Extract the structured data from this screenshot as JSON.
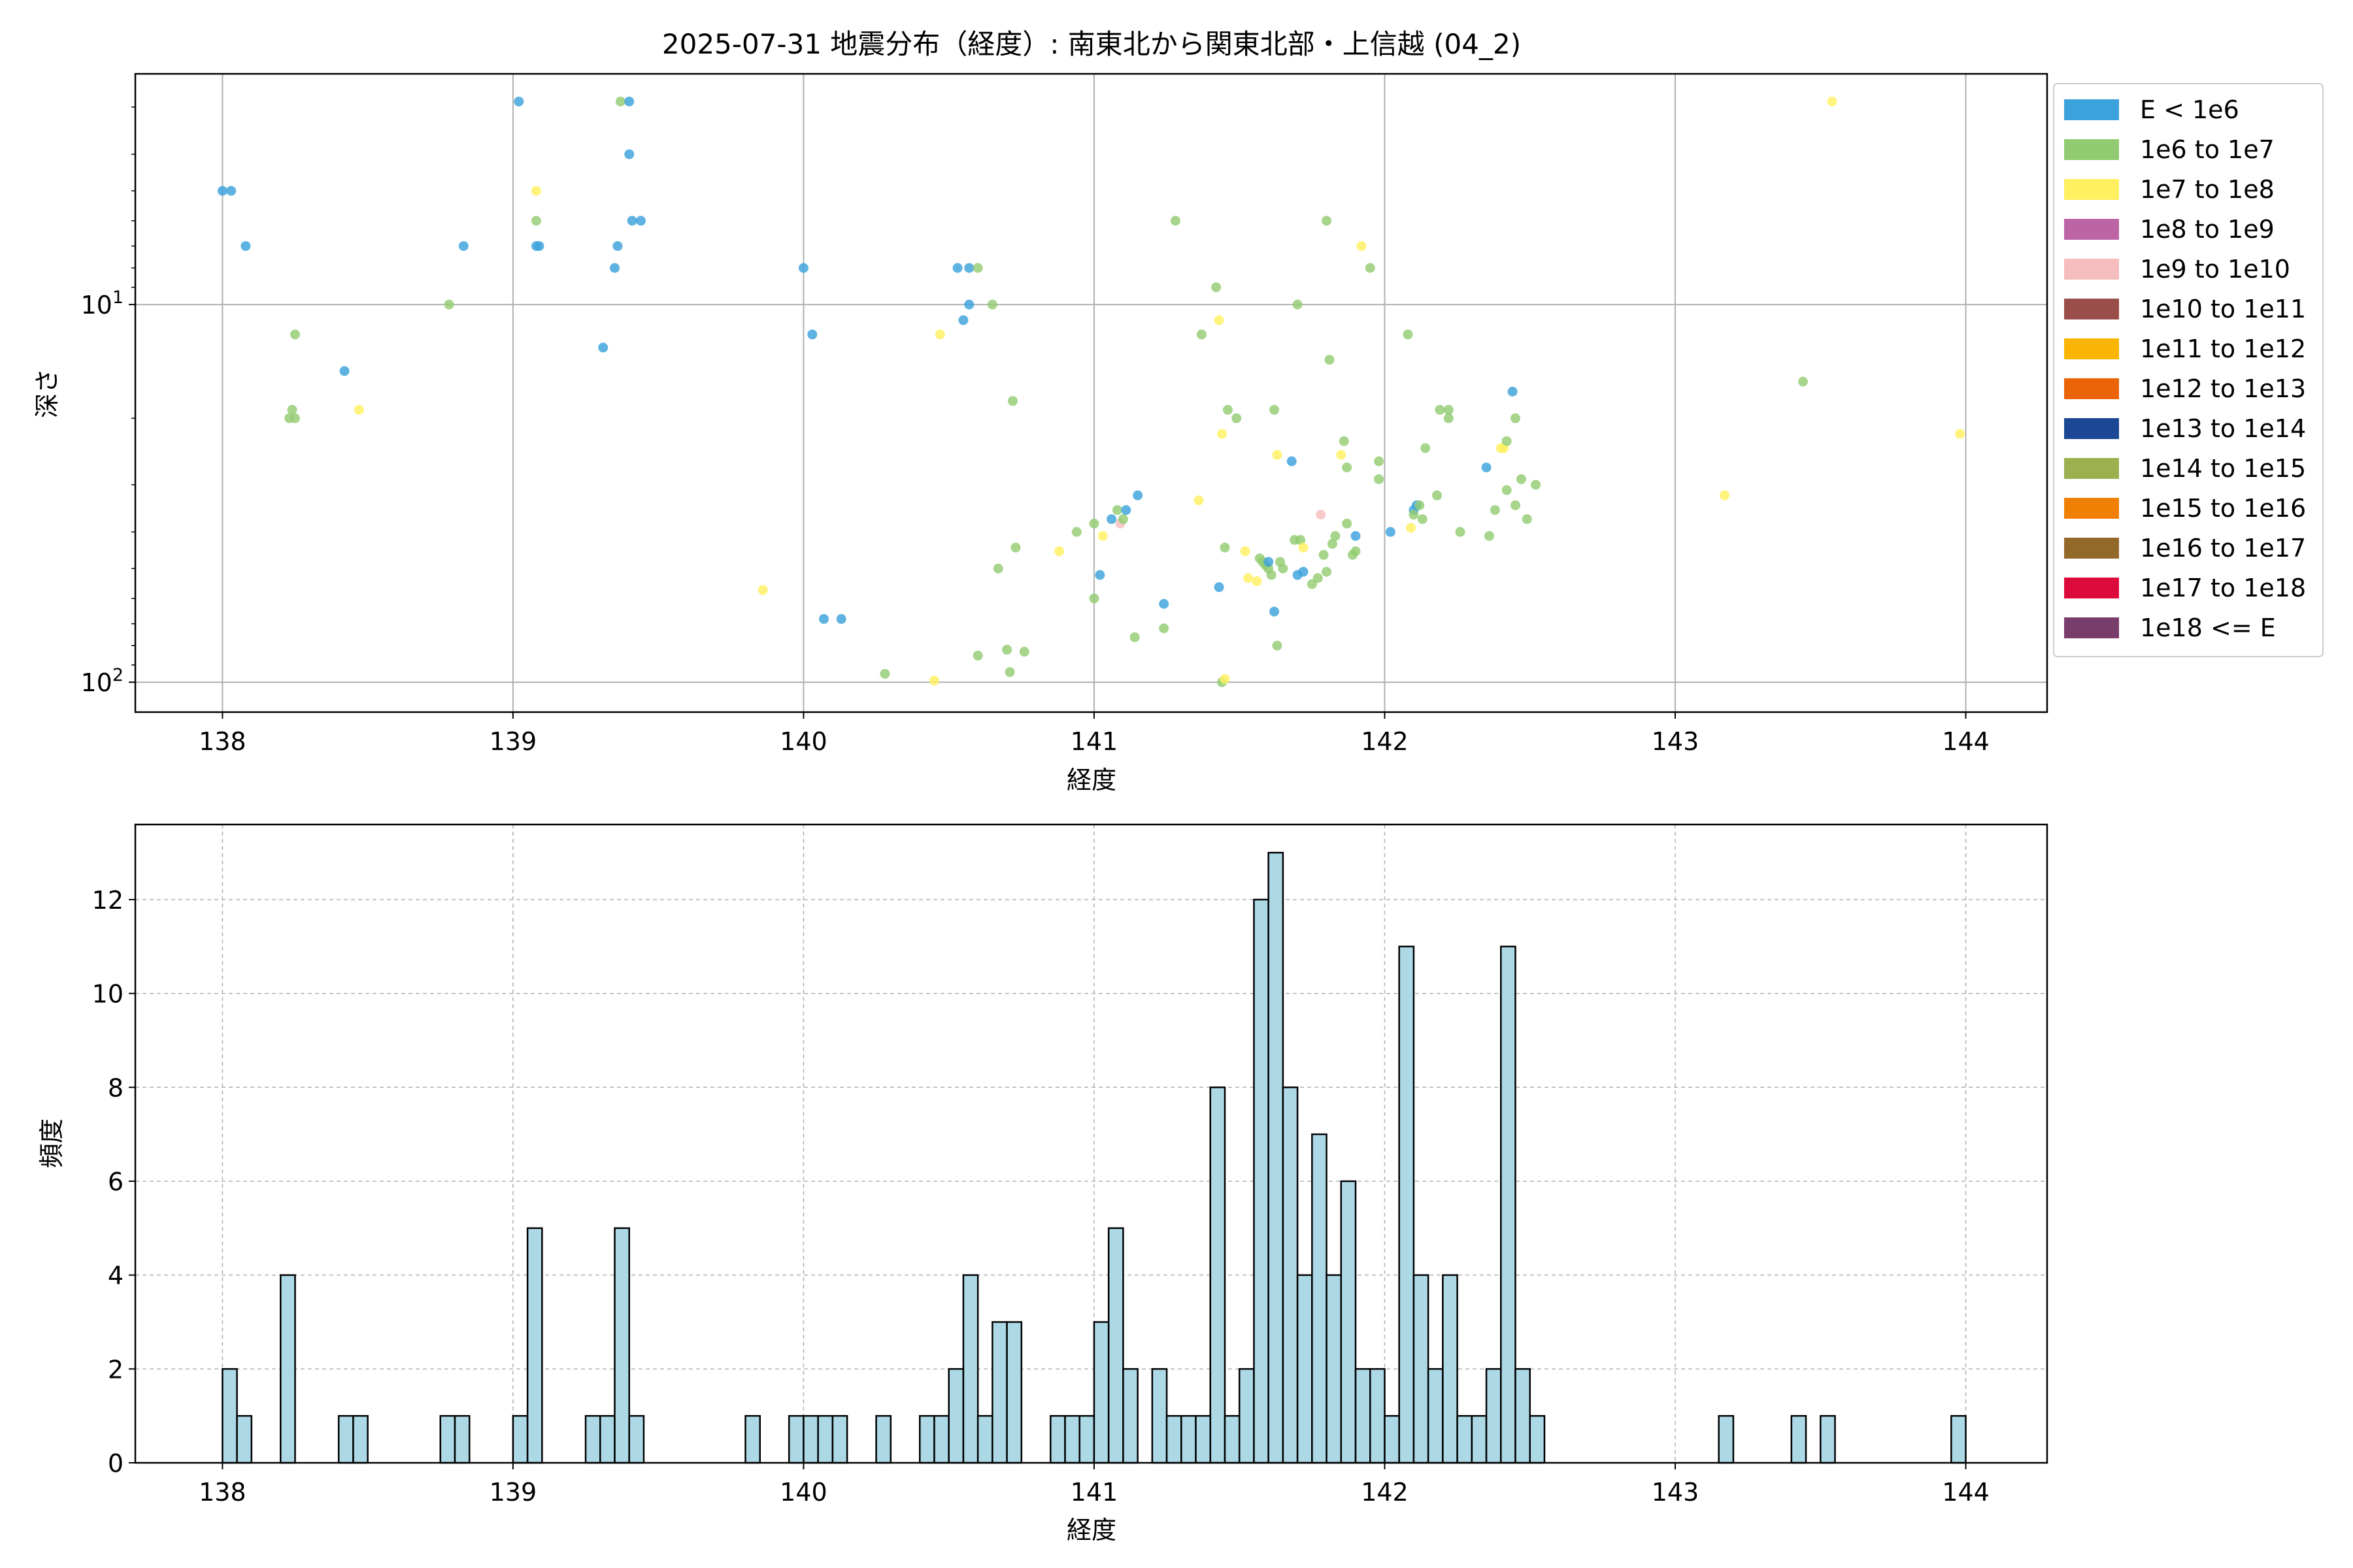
{
  "figure": {
    "title": "2025-07-31 地震分布（経度）: 南東北から関東北部・上信越 (04_2)"
  },
  "chart_data": [
    {
      "type": "scatter",
      "xlabel": "経度",
      "ylabel": "深さ",
      "xlim": [
        137.7,
        144.28
      ],
      "yscale": "log",
      "y_inverted": true,
      "ylim": [
        120,
        2.45
      ],
      "xticks": [
        "138",
        "139",
        "140",
        "141",
        "142",
        "143",
        "144"
      ],
      "yticks": [
        {
          "value": 10,
          "base": "10",
          "exp": "1"
        },
        {
          "value": 100,
          "base": "10",
          "exp": "2"
        }
      ],
      "grid": true,
      "legend_position": "outside-right",
      "legend": [
        {
          "label": "E < 1e6",
          "color": "#3ca2dc"
        },
        {
          "label": "1e6 to 1e7",
          "color": "#92cc72"
        },
        {
          "label": "1e7 to 1e8",
          "color": "#fff060"
        },
        {
          "label": "1e8 to 1e9",
          "color": "#bc64a4"
        },
        {
          "label": "1e9 to 1e10",
          "color": "#f5bdbd"
        },
        {
          "label": "1e10 to 1e11",
          "color": "#9a4e4a"
        },
        {
          "label": "1e11 to 1e12",
          "color": "#f9b404"
        },
        {
          "label": "1e12 to 1e13",
          "color": "#ea6306"
        },
        {
          "label": "1e13 to 1e14",
          "color": "#1c4794"
        },
        {
          "label": "1e14 to 1e15",
          "color": "#9cb04f"
        },
        {
          "label": "1e15 to 1e16",
          "color": "#f07f06"
        },
        {
          "label": "1e16 to 1e17",
          "color": "#93692a"
        },
        {
          "label": "1e17 to 1e18",
          "color": "#dc0b3c"
        },
        {
          "label": "1e18 <= E",
          "color": "#793d6b"
        }
      ],
      "points": [
        {
          "x": 138.0,
          "y": 5.0,
          "c": 0
        },
        {
          "x": 138.03,
          "y": 5.0,
          "c": 0
        },
        {
          "x": 138.08,
          "y": 7.0,
          "c": 0
        },
        {
          "x": 138.25,
          "y": 12.0,
          "c": 1
        },
        {
          "x": 138.24,
          "y": 19.0,
          "c": 1
        },
        {
          "x": 138.23,
          "y": 20.0,
          "c": 1
        },
        {
          "x": 138.25,
          "y": 20.0,
          "c": 1
        },
        {
          "x": 138.42,
          "y": 15.0,
          "c": 0
        },
        {
          "x": 138.47,
          "y": 19.0,
          "c": 2
        },
        {
          "x": 138.78,
          "y": 10.0,
          "c": 1
        },
        {
          "x": 138.83,
          "y": 7.0,
          "c": 0
        },
        {
          "x": 139.02,
          "y": 2.9,
          "c": 0
        },
        {
          "x": 139.08,
          "y": 5.0,
          "c": 2
        },
        {
          "x": 139.08,
          "y": 6.0,
          "c": 1
        },
        {
          "x": 139.08,
          "y": 7.0,
          "c": 0
        },
        {
          "x": 139.09,
          "y": 7.0,
          "c": 0
        },
        {
          "x": 139.31,
          "y": 13.0,
          "c": 0
        },
        {
          "x": 139.35,
          "y": 8.0,
          "c": 0
        },
        {
          "x": 139.36,
          "y": 7.0,
          "c": 0
        },
        {
          "x": 139.37,
          "y": 2.9,
          "c": 1
        },
        {
          "x": 139.4,
          "y": 2.9,
          "c": 0
        },
        {
          "x": 139.4,
          "y": 4.0,
          "c": 0
        },
        {
          "x": 139.41,
          "y": 6.0,
          "c": 0
        },
        {
          "x": 139.44,
          "y": 6.0,
          "c": 0
        },
        {
          "x": 139.86,
          "y": 57.0,
          "c": 2
        },
        {
          "x": 140.0,
          "y": 8.0,
          "c": 0
        },
        {
          "x": 140.03,
          "y": 12.0,
          "c": 0
        },
        {
          "x": 140.07,
          "y": 68.0,
          "c": 0
        },
        {
          "x": 140.13,
          "y": 68.0,
          "c": 0
        },
        {
          "x": 140.28,
          "y": 95.0,
          "c": 1
        },
        {
          "x": 140.45,
          "y": 99.0,
          "c": 2
        },
        {
          "x": 140.47,
          "y": 12.0,
          "c": 2
        },
        {
          "x": 140.53,
          "y": 8.0,
          "c": 0
        },
        {
          "x": 140.55,
          "y": 11.0,
          "c": 0
        },
        {
          "x": 140.57,
          "y": 8.0,
          "c": 0
        },
        {
          "x": 140.57,
          "y": 10.0,
          "c": 0
        },
        {
          "x": 140.6,
          "y": 8.0,
          "c": 1
        },
        {
          "x": 140.6,
          "y": 85.0,
          "c": 1
        },
        {
          "x": 140.65,
          "y": 10.0,
          "c": 1
        },
        {
          "x": 140.67,
          "y": 50.0,
          "c": 1
        },
        {
          "x": 140.7,
          "y": 82.0,
          "c": 1
        },
        {
          "x": 140.71,
          "y": 94.0,
          "c": 1
        },
        {
          "x": 140.72,
          "y": 18.0,
          "c": 1
        },
        {
          "x": 140.73,
          "y": 44.0,
          "c": 1
        },
        {
          "x": 140.76,
          "y": 83.0,
          "c": 1
        },
        {
          "x": 140.88,
          "y": 45.0,
          "c": 2
        },
        {
          "x": 140.94,
          "y": 40.0,
          "c": 1
        },
        {
          "x": 141.0,
          "y": 38.0,
          "c": 1
        },
        {
          "x": 141.0,
          "y": 60.0,
          "c": 1
        },
        {
          "x": 141.02,
          "y": 52.0,
          "c": 0
        },
        {
          "x": 141.03,
          "y": 41.0,
          "c": 2
        },
        {
          "x": 141.06,
          "y": 37.0,
          "c": 0
        },
        {
          "x": 141.08,
          "y": 35.0,
          "c": 1
        },
        {
          "x": 141.09,
          "y": 38.0,
          "c": 4
        },
        {
          "x": 141.1,
          "y": 37.0,
          "c": 1
        },
        {
          "x": 141.11,
          "y": 35.0,
          "c": 0
        },
        {
          "x": 141.15,
          "y": 32.0,
          "c": 0
        },
        {
          "x": 141.14,
          "y": 76.0,
          "c": 1
        },
        {
          "x": 141.24,
          "y": 62.0,
          "c": 0
        },
        {
          "x": 141.24,
          "y": 72.0,
          "c": 1
        },
        {
          "x": 141.28,
          "y": 6.0,
          "c": 1
        },
        {
          "x": 141.36,
          "y": 33.0,
          "c": 2
        },
        {
          "x": 141.37,
          "y": 12.0,
          "c": 1
        },
        {
          "x": 141.42,
          "y": 9.0,
          "c": 1
        },
        {
          "x": 141.43,
          "y": 11.0,
          "c": 2
        },
        {
          "x": 141.43,
          "y": 56.0,
          "c": 0
        },
        {
          "x": 141.44,
          "y": 100.0,
          "c": 1
        },
        {
          "x": 141.45,
          "y": 98.0,
          "c": 2
        },
        {
          "x": 141.44,
          "y": 22.0,
          "c": 2
        },
        {
          "x": 141.45,
          "y": 44.0,
          "c": 1
        },
        {
          "x": 141.46,
          "y": 19.0,
          "c": 1
        },
        {
          "x": 141.49,
          "y": 20.0,
          "c": 1
        },
        {
          "x": 141.52,
          "y": 45.0,
          "c": 2
        },
        {
          "x": 141.53,
          "y": 53.0,
          "c": 2
        },
        {
          "x": 141.56,
          "y": 54.0,
          "c": 2
        },
        {
          "x": 141.57,
          "y": 47.0,
          "c": 1
        },
        {
          "x": 141.58,
          "y": 48.0,
          "c": 1
        },
        {
          "x": 141.59,
          "y": 49.0,
          "c": 1
        },
        {
          "x": 141.6,
          "y": 50.0,
          "c": 1
        },
        {
          "x": 141.6,
          "y": 48.0,
          "c": 0
        },
        {
          "x": 141.61,
          "y": 52.0,
          "c": 1
        },
        {
          "x": 141.62,
          "y": 65.0,
          "c": 0
        },
        {
          "x": 141.62,
          "y": 19.0,
          "c": 1
        },
        {
          "x": 141.63,
          "y": 25.0,
          "c": 2
        },
        {
          "x": 141.64,
          "y": 48.0,
          "c": 1
        },
        {
          "x": 141.63,
          "y": 80.0,
          "c": 1
        },
        {
          "x": 141.65,
          "y": 50.0,
          "c": 1
        },
        {
          "x": 141.68,
          "y": 26.0,
          "c": 0
        },
        {
          "x": 141.69,
          "y": 42.0,
          "c": 1
        },
        {
          "x": 141.7,
          "y": 10.0,
          "c": 1
        },
        {
          "x": 141.7,
          "y": 52.0,
          "c": 0
        },
        {
          "x": 141.71,
          "y": 42.0,
          "c": 1
        },
        {
          "x": 141.72,
          "y": 44.0,
          "c": 2
        },
        {
          "x": 141.72,
          "y": 51.0,
          "c": 0
        },
        {
          "x": 141.75,
          "y": 55.0,
          "c": 1
        },
        {
          "x": 141.77,
          "y": 53.0,
          "c": 1
        },
        {
          "x": 141.78,
          "y": 36.0,
          "c": 4
        },
        {
          "x": 141.79,
          "y": 46.0,
          "c": 1
        },
        {
          "x": 141.8,
          "y": 6.0,
          "c": 1
        },
        {
          "x": 141.8,
          "y": 51.0,
          "c": 1
        },
        {
          "x": 141.81,
          "y": 14.0,
          "c": 1
        },
        {
          "x": 141.82,
          "y": 43.0,
          "c": 1
        },
        {
          "x": 141.83,
          "y": 41.0,
          "c": 1
        },
        {
          "x": 141.85,
          "y": 25.0,
          "c": 2
        },
        {
          "x": 141.86,
          "y": 23.0,
          "c": 1
        },
        {
          "x": 141.87,
          "y": 27.0,
          "c": 1
        },
        {
          "x": 141.87,
          "y": 38.0,
          "c": 1
        },
        {
          "x": 141.89,
          "y": 46.0,
          "c": 1
        },
        {
          "x": 141.9,
          "y": 41.0,
          "c": 0
        },
        {
          "x": 141.92,
          "y": 7.0,
          "c": 2
        },
        {
          "x": 141.9,
          "y": 45.0,
          "c": 1
        },
        {
          "x": 141.95,
          "y": 8.0,
          "c": 1
        },
        {
          "x": 141.98,
          "y": 26.0,
          "c": 1
        },
        {
          "x": 141.98,
          "y": 29.0,
          "c": 1
        },
        {
          "x": 142.02,
          "y": 40.0,
          "c": 0
        },
        {
          "x": 142.08,
          "y": 12.0,
          "c": 1
        },
        {
          "x": 142.09,
          "y": 39.0,
          "c": 2
        },
        {
          "x": 142.1,
          "y": 35.0,
          "c": 0
        },
        {
          "x": 142.11,
          "y": 34.0,
          "c": 0
        },
        {
          "x": 142.1,
          "y": 36.0,
          "c": 1
        },
        {
          "x": 142.12,
          "y": 34.0,
          "c": 1
        },
        {
          "x": 142.13,
          "y": 37.0,
          "c": 1
        },
        {
          "x": 142.14,
          "y": 24.0,
          "c": 1
        },
        {
          "x": 142.18,
          "y": 32.0,
          "c": 1
        },
        {
          "x": 142.19,
          "y": 19.0,
          "c": 1
        },
        {
          "x": 142.22,
          "y": 19.0,
          "c": 1
        },
        {
          "x": 142.22,
          "y": 20.0,
          "c": 1
        },
        {
          "x": 142.26,
          "y": 40.0,
          "c": 1
        },
        {
          "x": 142.35,
          "y": 27.0,
          "c": 0
        },
        {
          "x": 142.36,
          "y": 41.0,
          "c": 1
        },
        {
          "x": 142.38,
          "y": 35.0,
          "c": 1
        },
        {
          "x": 142.4,
          "y": 24.0,
          "c": 2
        },
        {
          "x": 142.41,
          "y": 24.0,
          "c": 2
        },
        {
          "x": 142.42,
          "y": 23.0,
          "c": 1
        },
        {
          "x": 142.42,
          "y": 31.0,
          "c": 1
        },
        {
          "x": 142.44,
          "y": 17.0,
          "c": 0
        },
        {
          "x": 142.45,
          "y": 20.0,
          "c": 1
        },
        {
          "x": 142.45,
          "y": 34.0,
          "c": 1
        },
        {
          "x": 142.47,
          "y": 29.0,
          "c": 1
        },
        {
          "x": 142.49,
          "y": 37.0,
          "c": 1
        },
        {
          "x": 142.52,
          "y": 30.0,
          "c": 1
        },
        {
          "x": 143.17,
          "y": 32.0,
          "c": 2
        },
        {
          "x": 143.44,
          "y": 16.0,
          "c": 1
        },
        {
          "x": 143.54,
          "y": 2.9,
          "c": 2
        },
        {
          "x": 143.98,
          "y": 22.0,
          "c": 2
        }
      ]
    },
    {
      "type": "bar",
      "xlabel": "経度",
      "ylabel": "頻度",
      "xlim": [
        137.7,
        144.28
      ],
      "ylim": [
        0,
        13.6
      ],
      "xticks": [
        "138",
        "139",
        "140",
        "141",
        "142",
        "143",
        "144"
      ],
      "yticks": [
        "0",
        "2",
        "4",
        "6",
        "8",
        "10",
        "12"
      ],
      "grid": true,
      "bar_color": "#add8e6",
      "edge_color": "#000000",
      "bin_width": 0.05,
      "bins": [
        [
          138.0,
          2
        ],
        [
          138.05,
          1
        ],
        [
          138.2,
          4
        ],
        [
          138.4,
          1
        ],
        [
          138.45,
          1
        ],
        [
          138.75,
          1
        ],
        [
          138.8,
          1
        ],
        [
          139.0,
          1
        ],
        [
          139.05,
          5
        ],
        [
          139.25,
          1
        ],
        [
          139.3,
          1
        ],
        [
          139.35,
          5
        ],
        [
          139.4,
          1
        ],
        [
          139.8,
          1
        ],
        [
          139.95,
          1
        ],
        [
          140.0,
          1
        ],
        [
          140.05,
          1
        ],
        [
          140.1,
          1
        ],
        [
          140.25,
          1
        ],
        [
          140.4,
          1
        ],
        [
          140.45,
          1
        ],
        [
          140.5,
          2
        ],
        [
          140.55,
          4
        ],
        [
          140.6,
          1
        ],
        [
          140.65,
          3
        ],
        [
          140.7,
          3
        ],
        [
          140.85,
          1
        ],
        [
          140.9,
          1
        ],
        [
          140.95,
          1
        ],
        [
          141.0,
          3
        ],
        [
          141.05,
          5
        ],
        [
          141.1,
          2
        ],
        [
          141.2,
          2
        ],
        [
          141.25,
          1
        ],
        [
          141.3,
          1
        ],
        [
          141.35,
          1
        ],
        [
          141.4,
          8
        ],
        [
          141.45,
          1
        ],
        [
          141.5,
          2
        ],
        [
          141.55,
          12
        ],
        [
          141.6,
          13
        ],
        [
          141.65,
          8
        ],
        [
          141.7,
          4
        ],
        [
          141.75,
          7
        ],
        [
          141.8,
          4
        ],
        [
          141.85,
          6
        ],
        [
          141.9,
          2
        ],
        [
          141.95,
          2
        ],
        [
          142.0,
          1
        ],
        [
          142.05,
          11
        ],
        [
          142.1,
          4
        ],
        [
          142.15,
          2
        ],
        [
          142.2,
          4
        ],
        [
          142.25,
          1
        ],
        [
          142.3,
          1
        ],
        [
          142.35,
          2
        ],
        [
          142.4,
          11
        ],
        [
          142.45,
          2
        ],
        [
          142.5,
          1
        ],
        [
          143.15,
          1
        ],
        [
          143.4,
          1
        ],
        [
          143.5,
          1
        ],
        [
          143.95,
          1
        ]
      ]
    }
  ]
}
